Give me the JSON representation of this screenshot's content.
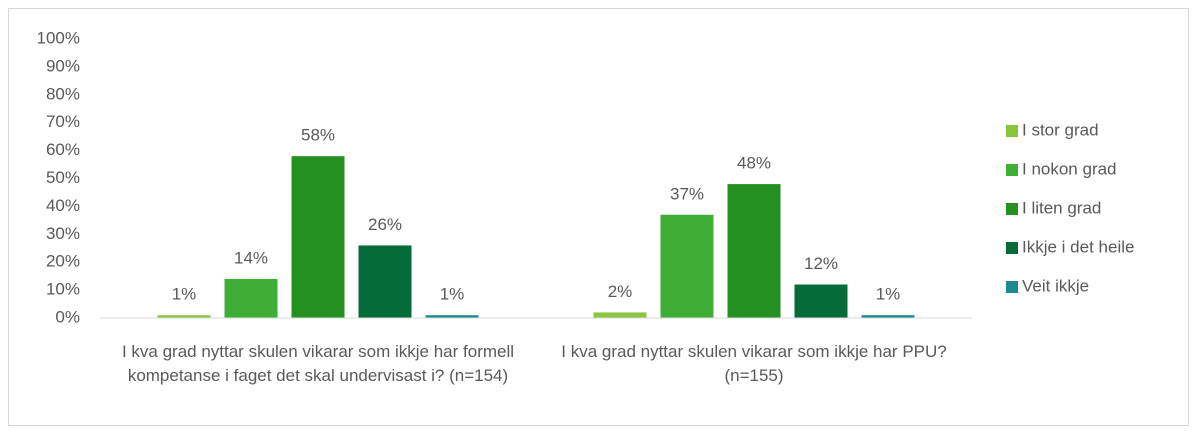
{
  "chart_data": {
    "type": "bar",
    "categories": [
      "I kva grad nyttar skulen vikarar som ikkje har formell kompetanse i faget det skal undervisast i? (n=154)",
      "I kva grad nyttar skulen vikarar som ikkje har PPU? (n=155)"
    ],
    "series": [
      {
        "name": "I stor grad",
        "color": "#8cc43f",
        "values": [
          1,
          2
        ],
        "value_labels": [
          "1%",
          "2%"
        ]
      },
      {
        "name": "I nokon grad",
        "color": "#3fae36",
        "values": [
          14,
          37
        ],
        "value_labels": [
          "14%",
          "37%"
        ]
      },
      {
        "name": "I liten grad",
        "color": "#24901f",
        "values": [
          58,
          48
        ],
        "value_labels": [
          "58%",
          "48%"
        ]
      },
      {
        "name": "Ikkje i det heile",
        "color": "#056b38",
        "values": [
          26,
          12
        ],
        "value_labels": [
          "26%",
          "12%"
        ]
      },
      {
        "name": "Veit ikkje",
        "color": "#1b8a90",
        "values": [
          1,
          1
        ],
        "value_labels": [
          "1%",
          "1%"
        ]
      }
    ],
    "ylim": [
      0,
      100
    ],
    "yticks": [
      {
        "value": 0,
        "label": "0%"
      },
      {
        "value": 10,
        "label": "10%"
      },
      {
        "value": 20,
        "label": "20%"
      },
      {
        "value": 30,
        "label": "30%"
      },
      {
        "value": 40,
        "label": "40%"
      },
      {
        "value": 50,
        "label": "50%"
      },
      {
        "value": 60,
        "label": "60%"
      },
      {
        "value": 70,
        "label": "70%"
      },
      {
        "value": 80,
        "label": "80%"
      },
      {
        "value": 90,
        "label": "90%"
      },
      {
        "value": 100,
        "label": "100%"
      }
    ],
    "legend": "right"
  }
}
